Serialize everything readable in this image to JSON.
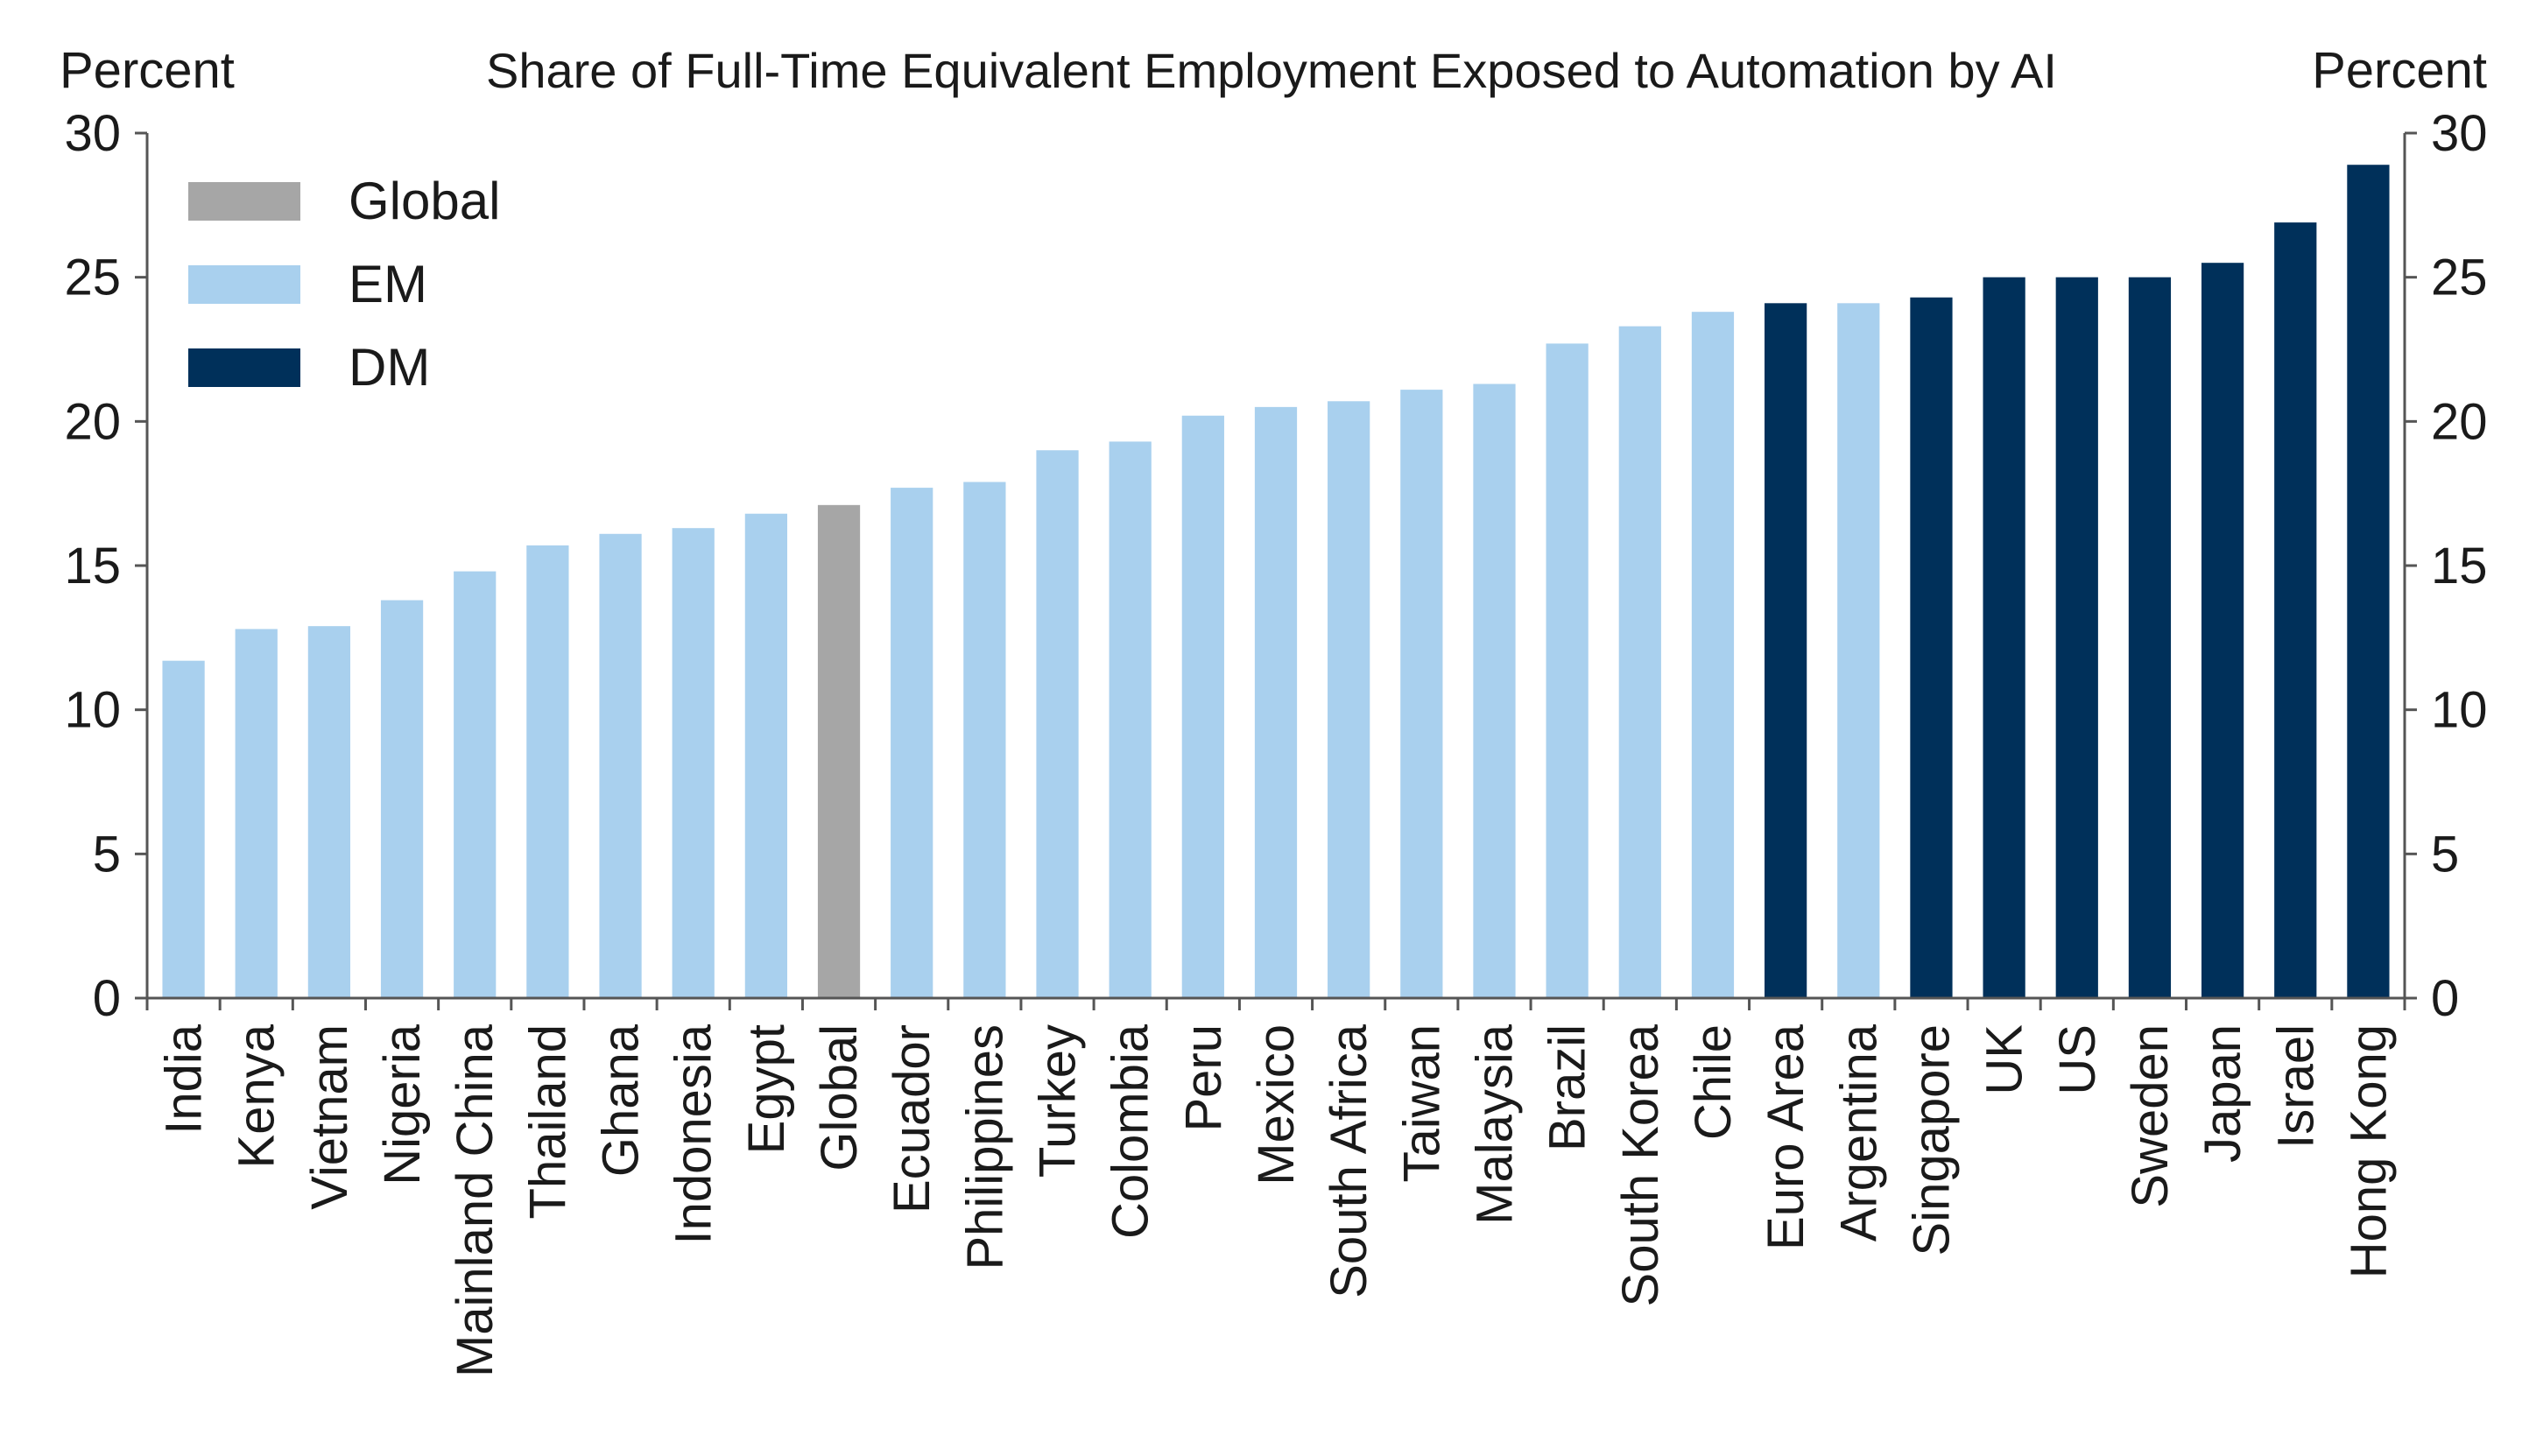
{
  "chart_data": {
    "type": "bar",
    "title": "Share of Full-Time Equivalent Employment Exposed to Automation by AI",
    "ylabel_left": "Percent",
    "ylabel_right": "Percent",
    "xlabel": "",
    "ylim": [
      0,
      30
    ],
    "yticks": [
      0,
      5,
      10,
      15,
      20,
      25,
      30
    ],
    "legend_position": "top-left",
    "legend": [
      {
        "key": "Global",
        "label": "Global",
        "color": "#a6a6a6"
      },
      {
        "key": "EM",
        "label": "EM",
        "color": "#a9d0ee"
      },
      {
        "key": "DM",
        "label": "DM",
        "color": "#00305a"
      }
    ],
    "categories": [
      "India",
      "Kenya",
      "Vietnam",
      "Nigeria",
      "Mainland China",
      "Thailand",
      "Ghana",
      "Indonesia",
      "Egypt",
      "Global",
      "Ecuador",
      "Philippines",
      "Turkey",
      "Colombia",
      "Peru",
      "Mexico",
      "South Africa",
      "Taiwan",
      "Malaysia",
      "Brazil",
      "South Korea",
      "Chile",
      "Euro Area",
      "Argentina",
      "Singapore",
      "UK",
      "US",
      "Sweden",
      "Japan",
      "Israel",
      "Hong Kong"
    ],
    "values": [
      11.7,
      12.8,
      12.9,
      13.8,
      14.8,
      15.7,
      16.1,
      16.3,
      16.8,
      17.1,
      17.7,
      17.9,
      19.0,
      19.3,
      20.2,
      20.5,
      20.7,
      21.1,
      21.3,
      22.7,
      23.3,
      23.8,
      24.1,
      24.1,
      24.3,
      25.0,
      25.0,
      25.0,
      25.5,
      26.9,
      28.9
    ],
    "groups": [
      "EM",
      "EM",
      "EM",
      "EM",
      "EM",
      "EM",
      "EM",
      "EM",
      "EM",
      "Global",
      "EM",
      "EM",
      "EM",
      "EM",
      "EM",
      "EM",
      "EM",
      "EM",
      "EM",
      "EM",
      "EM",
      "EM",
      "DM",
      "EM",
      "DM",
      "DM",
      "DM",
      "DM",
      "DM",
      "DM",
      "DM"
    ]
  }
}
